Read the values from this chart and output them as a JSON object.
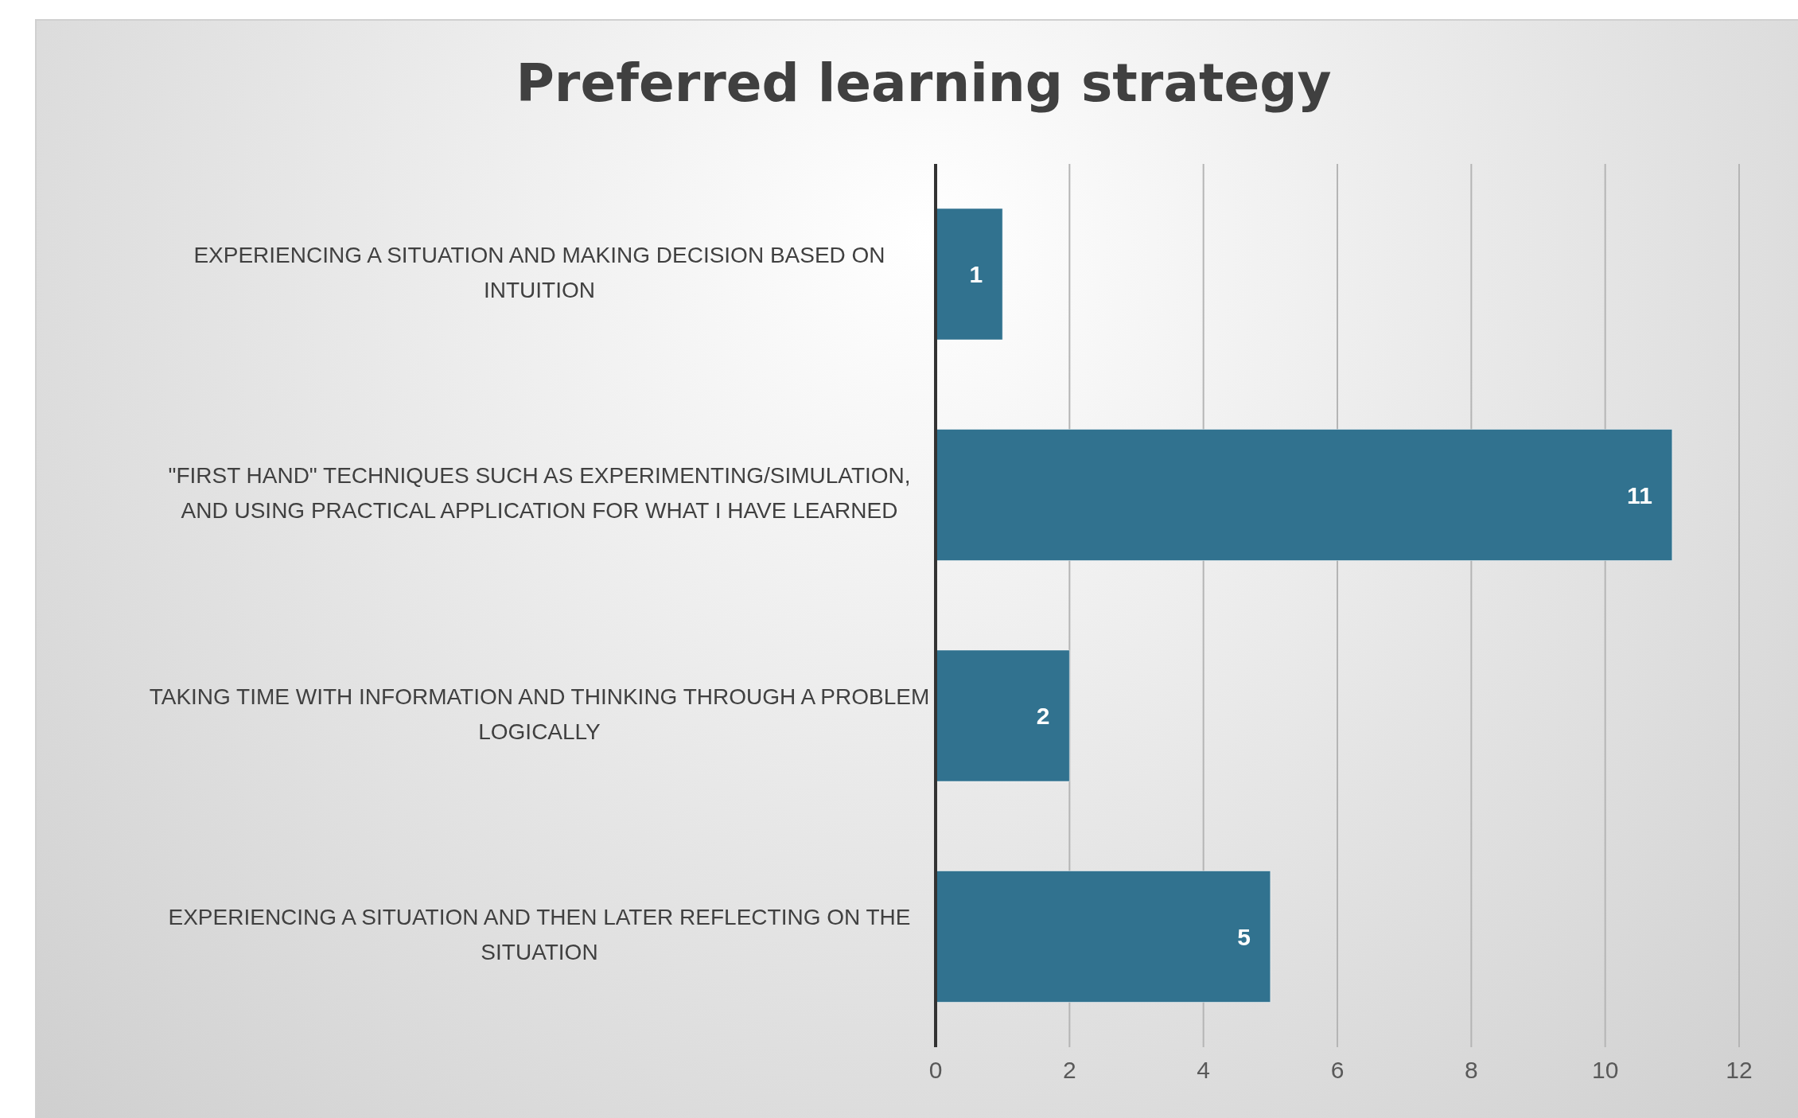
{
  "chart_data": {
    "type": "bar",
    "orientation": "horizontal",
    "title": "Preferred learning strategy",
    "categories": [
      "EXPERIENCING A SITUATION AND MAKING DECISION BASED ON INTUITION",
      "\"FIRST HAND\" TECHNIQUES SUCH AS EXPERIMENTING/SIMULATION, AND USING PRACTICAL APPLICATION FOR WHAT I HAVE LEARNED",
      "TAKING TIME WITH INFORMATION AND THINKING THROUGH A PROBLEM LOGICALLY",
      "EXPERIENCING A SITUATION AND THEN LATER REFLECTING ON THE SITUATION"
    ],
    "values": [
      1,
      11,
      2,
      5
    ],
    "color": "#31728f",
    "data_labels": true,
    "grid": "x",
    "xlim": [
      0,
      12
    ],
    "xticks": [
      0,
      2,
      4,
      6,
      8,
      10,
      12
    ]
  }
}
